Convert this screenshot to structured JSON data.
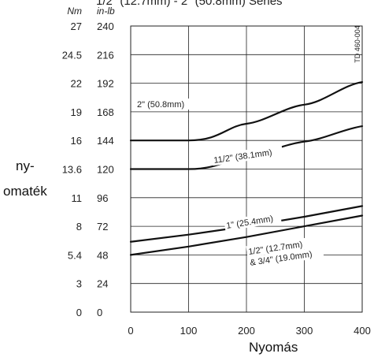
{
  "top_note": "1/2\" (12.7mm)  -  2\" (50.8mm) Séries",
  "doc_code": "TD 460-004",
  "chart_data": {
    "type": "line",
    "title": "",
    "xlabel": "Nyomás",
    "ylabel_lines": [
      "ny-",
      "omaték"
    ],
    "unit_nm": "Nm",
    "unit_inlb": "in-lb",
    "xlim": [
      0,
      400
    ],
    "ylim": [
      0,
      240
    ],
    "x_ticks": [
      0,
      100,
      200,
      300,
      400
    ],
    "y_ticks_inlb": [
      0,
      24,
      48,
      72,
      96,
      120,
      144,
      168,
      192,
      216,
      240
    ],
    "y_ticks_nm": [
      "0",
      "3",
      "5.4",
      "8",
      "11",
      "13.6",
      "16",
      "19",
      "22",
      "24.5",
      "27"
    ],
    "grid": true,
    "series": [
      {
        "name": "2\" (50.8mm)",
        "x": [
          0,
          100,
          200,
          300,
          400
        ],
        "y": [
          144,
          144,
          158,
          174,
          193
        ]
      },
      {
        "name": "11/2\" (38.1mm)",
        "x": [
          0,
          100,
          200,
          300,
          400
        ],
        "y": [
          120,
          120,
          131,
          143,
          156
        ]
      },
      {
        "name": "1\" (25.4mm)",
        "x": [
          0,
          100,
          200,
          300,
          400
        ],
        "y": [
          59,
          65,
          72,
          80,
          89
        ]
      },
      {
        "name": "1/2\" (12.7mm) & 3/4\" (19.0mm)",
        "x": [
          0,
          100,
          200,
          300,
          400
        ],
        "y": [
          48,
          55,
          63,
          72,
          81
        ]
      }
    ],
    "series_labels": [
      {
        "lines": [
          "2\" (50.8mm)"
        ]
      },
      {
        "lines": [
          "11/2\" (38.1mm)"
        ]
      },
      {
        "lines": [
          "1\" (25.4mm)"
        ]
      },
      {
        "lines": [
          "1/2\" (12.7mm)",
          "& 3/4\" (19.0mm)"
        ]
      }
    ]
  }
}
